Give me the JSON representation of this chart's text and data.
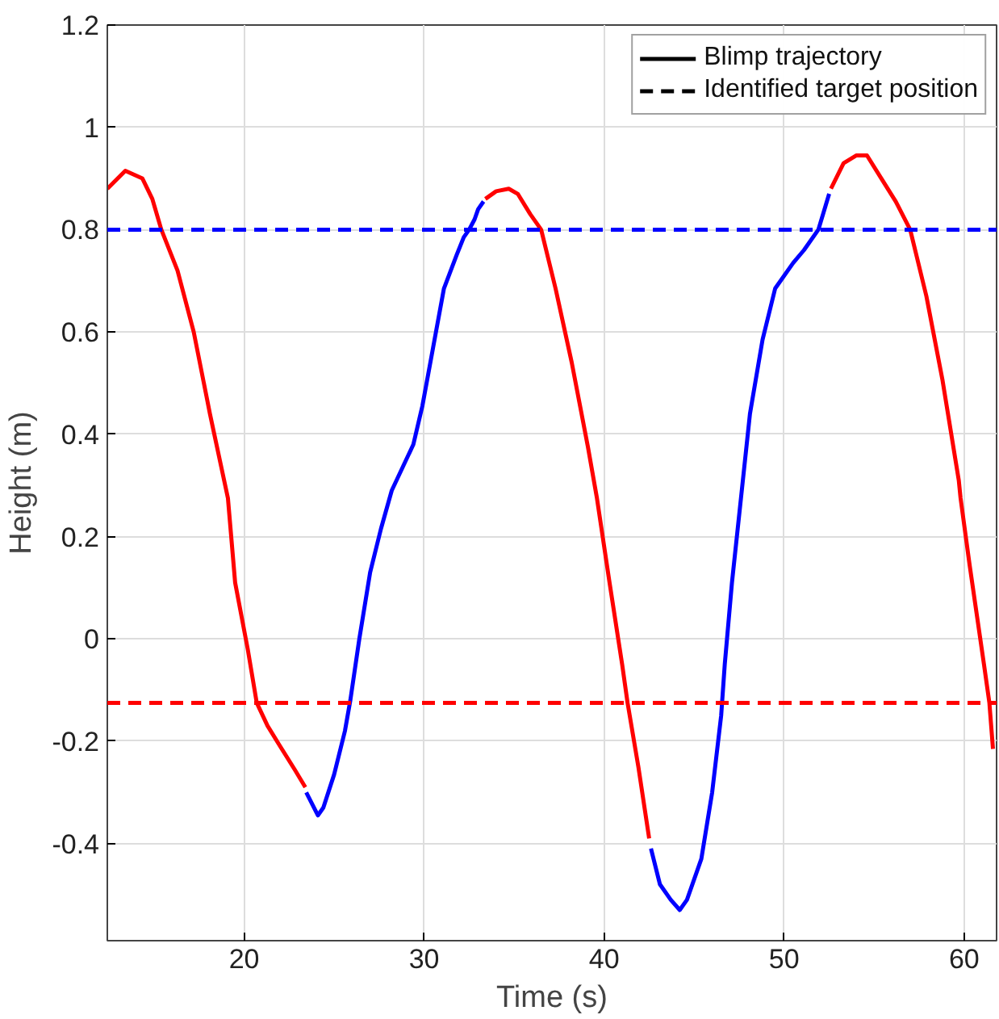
{
  "chart_data": {
    "type": "line",
    "xlabel": "Time (s)",
    "ylabel": "Height (m)",
    "xlim": [
      12.4,
      61.8
    ],
    "ylim": [
      -0.59,
      1.2
    ],
    "xticks": [
      20,
      30,
      40,
      50,
      60
    ],
    "yticks": [
      -0.4,
      -0.2,
      0,
      0.2,
      0.4,
      0.6,
      0.8,
      1,
      1.2
    ],
    "grid": true,
    "line_style": "solid",
    "annotations": [
      "Blimp trajectory",
      "Identified target position"
    ],
    "series": [
      {
        "color": "#ff0000",
        "x": [
          12.4,
          13.4,
          14.35,
          14.9,
          15.4,
          16.3,
          17.2,
          18.1,
          19.1,
          19.5,
          20.2,
          20.7,
          21.3,
          22.0,
          22.8,
          23.4
        ],
        "values": [
          0.88,
          0.915,
          0.9,
          0.86,
          0.8,
          0.72,
          0.6,
          0.44,
          0.275,
          0.11,
          -0.02,
          -0.125,
          -0.17,
          -0.21,
          -0.255,
          -0.29
        ]
      },
      {
        "color": "#0000ff",
        "x": [
          23.45,
          24.1,
          24.4,
          25.0,
          25.6,
          25.9,
          26.4,
          27.0,
          27.6,
          28.2,
          28.8,
          29.4,
          29.9,
          30.5,
          31.1,
          31.8,
          32.2,
          32.5,
          32.8,
          33.0,
          33.3
        ],
        "values": [
          -0.3,
          -0.345,
          -0.33,
          -0.265,
          -0.18,
          -0.12,
          0.0,
          0.13,
          0.215,
          0.29,
          0.335,
          0.38,
          0.455,
          0.57,
          0.685,
          0.75,
          0.785,
          0.8,
          0.82,
          0.84,
          0.855
        ]
      },
      {
        "color": "#ff0000",
        "x": [
          33.4,
          34.0,
          34.7,
          35.2,
          35.9,
          36.5,
          37.3,
          38.2,
          39.1,
          39.6,
          40.3,
          41.0,
          41.3,
          41.9,
          42.5
        ],
        "values": [
          0.86,
          0.875,
          0.88,
          0.87,
          0.83,
          0.8,
          0.685,
          0.54,
          0.375,
          0.275,
          0.11,
          -0.05,
          -0.125,
          -0.25,
          -0.39
        ]
      },
      {
        "color": "#0000ff",
        "x": [
          42.6,
          43.1,
          43.7,
          44.2,
          44.6,
          45.4,
          46.0,
          46.5,
          46.7,
          47.1,
          47.6,
          48.1,
          48.8,
          49.5,
          50.5,
          51.1,
          51.9,
          52.5
        ],
        "values": [
          -0.41,
          -0.48,
          -0.51,
          -0.53,
          -0.51,
          -0.43,
          -0.3,
          -0.15,
          -0.05,
          0.11,
          0.275,
          0.44,
          0.585,
          0.685,
          0.735,
          0.76,
          0.8,
          0.87
        ]
      },
      {
        "color": "#ff0000",
        "x": [
          52.6,
          53.3,
          54.0,
          54.6,
          55.4,
          56.2,
          57.0,
          57.9,
          58.8,
          59.7,
          59.8,
          60.3,
          61.1,
          61.4,
          61.6
        ],
        "values": [
          0.88,
          0.93,
          0.945,
          0.945,
          0.9,
          0.855,
          0.8,
          0.67,
          0.505,
          0.31,
          0.275,
          0.145,
          -0.05,
          -0.125,
          -0.215
        ]
      }
    ],
    "ref_lines": [
      {
        "axis": "y",
        "value": 0.8,
        "color": "#0000ff",
        "line_style": "dashed"
      },
      {
        "axis": "y",
        "value": -0.125,
        "color": "#ff0000",
        "line_style": "dashed"
      }
    ]
  }
}
